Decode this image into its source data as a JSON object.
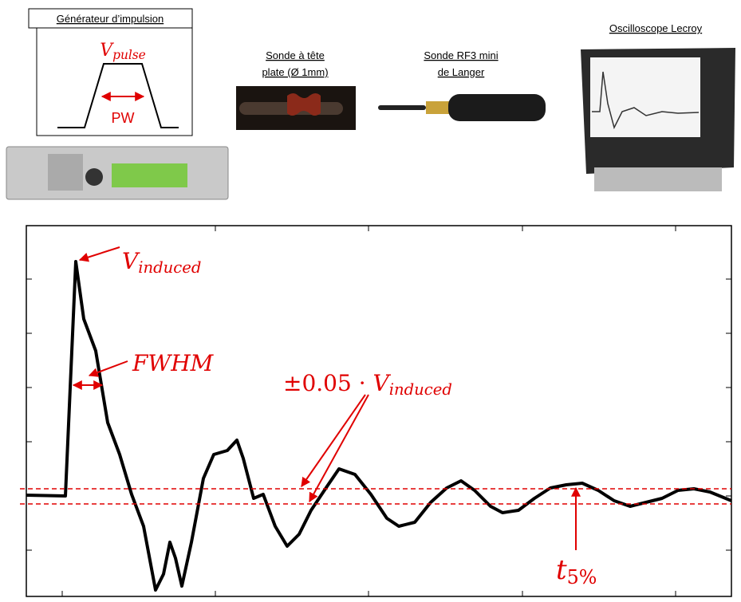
{
  "generator": {
    "title": "Générateur d’impulsion",
    "pulse_label": {
      "main": "V",
      "sub": "pulse"
    },
    "width_label": "PW"
  },
  "probes": [
    {
      "lines": [
        "Sonde à tête",
        "plate (Ø 1mm)"
      ]
    },
    {
      "lines": [
        "Sonde RF3 mini",
        "de Langer"
      ]
    }
  ],
  "oscilloscope": {
    "title": "Oscilloscope Lecroy"
  },
  "annotations": {
    "peak": {
      "main": "V",
      "sub": "induced"
    },
    "fwhm": "FWHM",
    "threshold": {
      "prefix": "±0.05 · ",
      "main": "V",
      "sub": "induced"
    },
    "settle": {
      "main": "t",
      "sub": "5%"
    }
  }
}
